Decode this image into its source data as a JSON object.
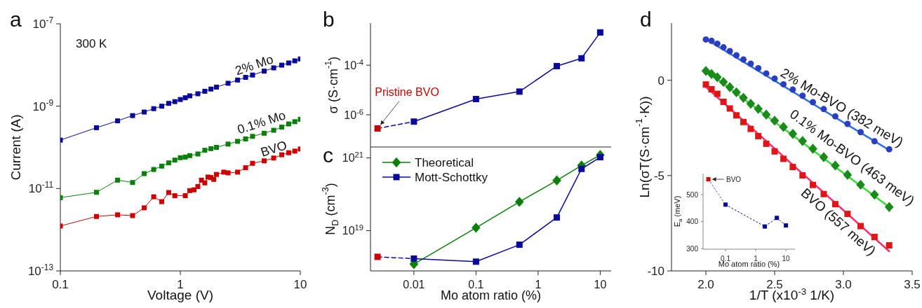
{
  "chart_data": [
    {
      "type": "line",
      "title": "a",
      "xlabel": "Voltage (V)",
      "ylabel": "Current (A)",
      "log": "xy",
      "xlim": [
        0.1,
        10
      ],
      "ylim": [
        1e-13,
        1e-07
      ],
      "xticks": [
        0.1,
        1,
        10
      ],
      "yticks": [
        {
          "value": 1e-13,
          "label": "10$^{-13}$"
        },
        {
          "value": 1e-11,
          "label": "10$^{-11}$"
        },
        {
          "value": 1e-09,
          "label": "10$^{-9}$"
        },
        {
          "value": 1e-07,
          "label": "10$^{-7}$"
        }
      ],
      "marker": "square",
      "annotations": [
        "300 K"
      ],
      "series": [
        {
          "name": "2% Mo",
          "color": "#0a0a9a",
          "x": [
            0.1,
            0.2,
            0.3,
            0.4,
            0.5,
            0.6,
            0.7,
            0.8,
            0.9,
            1,
            1.1,
            1.2,
            1.4,
            1.6,
            1.8,
            2,
            2.5,
            3,
            3.5,
            4,
            5,
            6,
            7,
            8,
            9,
            10
          ],
          "values": [
            1.5e-10,
            3e-10,
            4.4e-10,
            5.9e-10,
            7.2e-10,
            8.7e-10,
            1e-09,
            1.17e-09,
            1.29e-09,
            1.45e-09,
            1.6e-09,
            1.78e-09,
            2e-09,
            2.3e-09,
            2.6e-09,
            2.9e-09,
            3.6e-09,
            4.3e-09,
            5e-09,
            5.7e-09,
            7.1e-09,
            8.5e-09,
            9.9e-09,
            1.12e-08,
            1.26e-08,
            1.4e-08
          ]
        },
        {
          "name": "0.1% Mo",
          "color": "#0a800a",
          "x": [
            0.1,
            0.2,
            0.3,
            0.4,
            0.5,
            0.6,
            0.7,
            0.8,
            0.9,
            1,
            1.1,
            1.2,
            1.4,
            1.6,
            1.8,
            2,
            2.5,
            3,
            3.5,
            4,
            5,
            6,
            7,
            8,
            9,
            10
          ],
          "values": [
            6e-12,
            8.1e-12,
            1.6e-11,
            1.4e-11,
            2.3e-11,
            2.9e-11,
            3.5e-11,
            4.2e-11,
            4.9e-11,
            5.6e-11,
            5.8e-11,
            6.3e-11,
            6.9e-11,
            8.5e-11,
            9.3e-11,
            1e-10,
            1.2e-10,
            1.4e-10,
            1.6e-10,
            1.85e-10,
            2.2e-10,
            2.6e-10,
            3.1e-10,
            3.7e-10,
            4.2e-10,
            4.8e-10
          ]
        },
        {
          "name": "BVO",
          "color": "#cc0000",
          "x": [
            0.1,
            0.2,
            0.3,
            0.4,
            0.5,
            0.6,
            0.7,
            0.8,
            0.9,
            1.1,
            1.2,
            1.3,
            1.4,
            1.5,
            1.6,
            1.7,
            1.8,
            1.9,
            2,
            2.3,
            2.5,
            3,
            3.5,
            4,
            5,
            6,
            7,
            8,
            9,
            10
          ],
          "values": [
            1.23e-12,
            2.1e-12,
            2.3e-12,
            2.2e-12,
            3.4e-12,
            6.3e-12,
            4.8e-12,
            8e-12,
            6.7e-12,
            6.7e-12,
            8.9e-12,
            9.3e-12,
            1.12e-11,
            1.6e-11,
            1.37e-11,
            1.9e-11,
            1.85e-11,
            1.67e-11,
            2.2e-11,
            2.5e-11,
            2.4e-11,
            2.5e-11,
            3.2e-11,
            4.1e-11,
            4.7e-11,
            5.5e-11,
            6.6e-11,
            7.4e-11,
            8.1e-11,
            9.1e-11
          ]
        }
      ]
    },
    {
      "type": "line",
      "title": "b",
      "ylabel": "σ (S·cm$^{-1}$)",
      "log": "xy",
      "xlim": [
        0.002,
        15
      ],
      "ylim": [
        5e-08,
        0.005
      ],
      "xticks": [
        0.01,
        0.1,
        1,
        10
      ],
      "yticks": [
        {
          "value": 1e-06,
          "label": "10$^{-6}$"
        },
        {
          "value": 0.0001,
          "label": "10$^{-4}$"
        }
      ],
      "tick_labels": "y",
      "annotations": [
        {
          "text": "Pristine BVO",
          "x": 0.0026,
          "y": 2.8e-07
        }
      ],
      "series": [
        {
          "color": "#0a0a9a",
          "x": [
            0.0026,
            0.01
          ],
          "values": [
            2.8e-07,
            5.3e-07
          ],
          "line_style": "dashed"
        },
        {
          "color": "#0a0a9a",
          "x": [
            0.01,
            0.1,
            0.5,
            2,
            5,
            10
          ],
          "values": [
            5.3e-07,
            4.3e-06,
            8.6e-06,
            9.2e-05,
            0.00019,
            0.0021
          ],
          "marker": "square"
        },
        {
          "type": "scatter",
          "color": "#cc0000",
          "x": [
            0.0026
          ],
          "values": [
            2.8e-07
          ],
          "marker": "square"
        }
      ]
    },
    {
      "type": "line",
      "title": "c",
      "xlabel": "Mo atom ratio (%)",
      "ylabel": "N$_{D}$ (cm$^{-3}$)",
      "log": "xy",
      "xlim": [
        0.002,
        15
      ],
      "ylim": [
        7.8e+17,
        2e+21
      ],
      "xticks": [
        0.01,
        0.1,
        1,
        10
      ],
      "yticks": [
        {
          "value": 1e+19,
          "label": "10$^{19}$"
        },
        {
          "value": 1e+21,
          "label": "10$^{21}$"
        }
      ],
      "legend": "top left",
      "series": [
        {
          "color": "#0a0a9a",
          "x": [
            0.0026,
            0.01
          ],
          "values": [
            1.9e+18,
            1.7e+18
          ],
          "line_style": "dashed"
        },
        {
          "type": "scatter",
          "color": "#cc0000",
          "x": [
            0.0026
          ],
          "values": [
            1.9e+18
          ],
          "marker": "square"
        },
        {
          "name": "Theoretical",
          "color": "#0a800a",
          "x": [
            0.01,
            0.1,
            0.5,
            2,
            5,
            10
          ],
          "values": [
            1.2e+18,
            1.2e+19,
            6.2e+19,
            2.4e+20,
            6.2e+20,
            1.2e+21
          ],
          "marker": "diamond"
        },
        {
          "name": "Mott-Schottky",
          "color": "#0a0a9a",
          "x": [
            0.01,
            0.1,
            0.5,
            2,
            5,
            10
          ],
          "values": [
            1.7e+18,
            1.4e+18,
            4.1e+18,
            2.3e+19,
            5e+20,
            1.05e+21
          ],
          "marker": "square"
        }
      ]
    },
    {
      "type": "scatter",
      "title": "d",
      "xlabel": "1/T (x10$^{-3}$ 1/K)",
      "ylabel": "Ln(σT(S·cm$^{-1}$·K))",
      "xlim": [
        1.75,
        3.5
      ],
      "ylim": [
        -10,
        3
      ],
      "xticks": [
        {
          "value": 2,
          "label": "2.0"
        },
        {
          "value": 2.5,
          "label": "2.5"
        },
        {
          "value": 3,
          "label": "3.0"
        },
        {
          "value": 3.5,
          "label": "3.5"
        }
      ],
      "yticks": [
        -10,
        -5,
        0
      ],
      "x": [
        2.0,
        2.041,
        2.083,
        2.128,
        2.174,
        2.222,
        2.273,
        2.326,
        2.381,
        2.439,
        2.5,
        2.564,
        2.632,
        2.703,
        2.778,
        2.857,
        2.941,
        3.03,
        3.125,
        3.226,
        3.333
      ],
      "series": [
        {
          "type": "line",
          "color": "#2f6fe8",
          "x": [
            2.0,
            3.333
          ],
          "values": [
            2.16,
            -3.66
          ],
          "marker": "none"
        },
        {
          "type": "line",
          "color": "#33dd33",
          "x": [
            2.0,
            3.333
          ],
          "values": [
            0.5,
            -6.65
          ],
          "marker": "none"
        },
        {
          "type": "line",
          "color": "#ff2e6e",
          "x": [
            2.0,
            3.333
          ],
          "values": [
            -0.35,
            -8.97
          ],
          "marker": "none"
        },
        {
          "name": "2% Mo-BVO (382 meV)",
          "color": "#2a3fc0",
          "marker": "circle",
          "values": [
            2.14,
            2.07,
            1.92,
            1.73,
            1.53,
            1.31,
            1.09,
            0.87,
            0.63,
            0.36,
            0.09,
            -0.21,
            -0.49,
            -0.81,
            -1.15,
            -1.51,
            -1.89,
            -2.29,
            -2.72,
            -3.2,
            -3.62
          ]
        },
        {
          "name": "0.1% Mo-BVO (463 meV)",
          "color": "#1a8a1a",
          "marker": "diamond",
          "values": [
            0.49,
            0.33,
            0.16,
            -0.09,
            -0.36,
            -0.63,
            -0.92,
            -1.23,
            -1.5,
            -1.8,
            -2.12,
            -2.45,
            -2.81,
            -3.19,
            -3.59,
            -4.03,
            -4.47,
            -4.96,
            -5.48,
            -6.0,
            -6.65
          ]
        },
        {
          "name": "BVO (557 meV)",
          "color": "#e01515",
          "marker": "square",
          "values": [
            -0.22,
            -0.47,
            -0.71,
            -1.13,
            -1.48,
            -1.84,
            -2.19,
            -2.55,
            -2.93,
            -3.33,
            -3.73,
            -4.12,
            -4.55,
            -4.99,
            -5.49,
            -5.97,
            -6.5,
            -7.01,
            -7.65,
            -8.22,
            -8.66
          ]
        }
      ]
    },
    {
      "type": "line",
      "xlabel": "Mo atom ratio (%)",
      "ylabel": "E$_{a}$ (meV)",
      "log": "x",
      "xlim": [
        0.018,
        20
      ],
      "ylim": [
        298,
        578
      ],
      "xticks": [
        0.1,
        1,
        10
      ],
      "yticks": [
        300,
        400,
        500
      ],
      "annotations": [
        {
          "text": "BVO",
          "x": 0.027,
          "y": 557
        }
      ],
      "series": [
        {
          "color": "#4455dd",
          "x": [
            0.027,
            0.1
          ],
          "values": [
            557,
            463
          ],
          "line_style": "dotted",
          "marker": "none"
        },
        {
          "color": "#0a0a9a",
          "x": [
            0.1,
            2,
            5,
            10
          ],
          "values": [
            463,
            382,
            414,
            386
          ],
          "line_style": "dotted",
          "marker": "square"
        },
        {
          "type": "scatter",
          "color": "#dd0000",
          "x": [
            0.027
          ],
          "values": [
            557
          ],
          "marker": "square"
        }
      ]
    }
  ]
}
